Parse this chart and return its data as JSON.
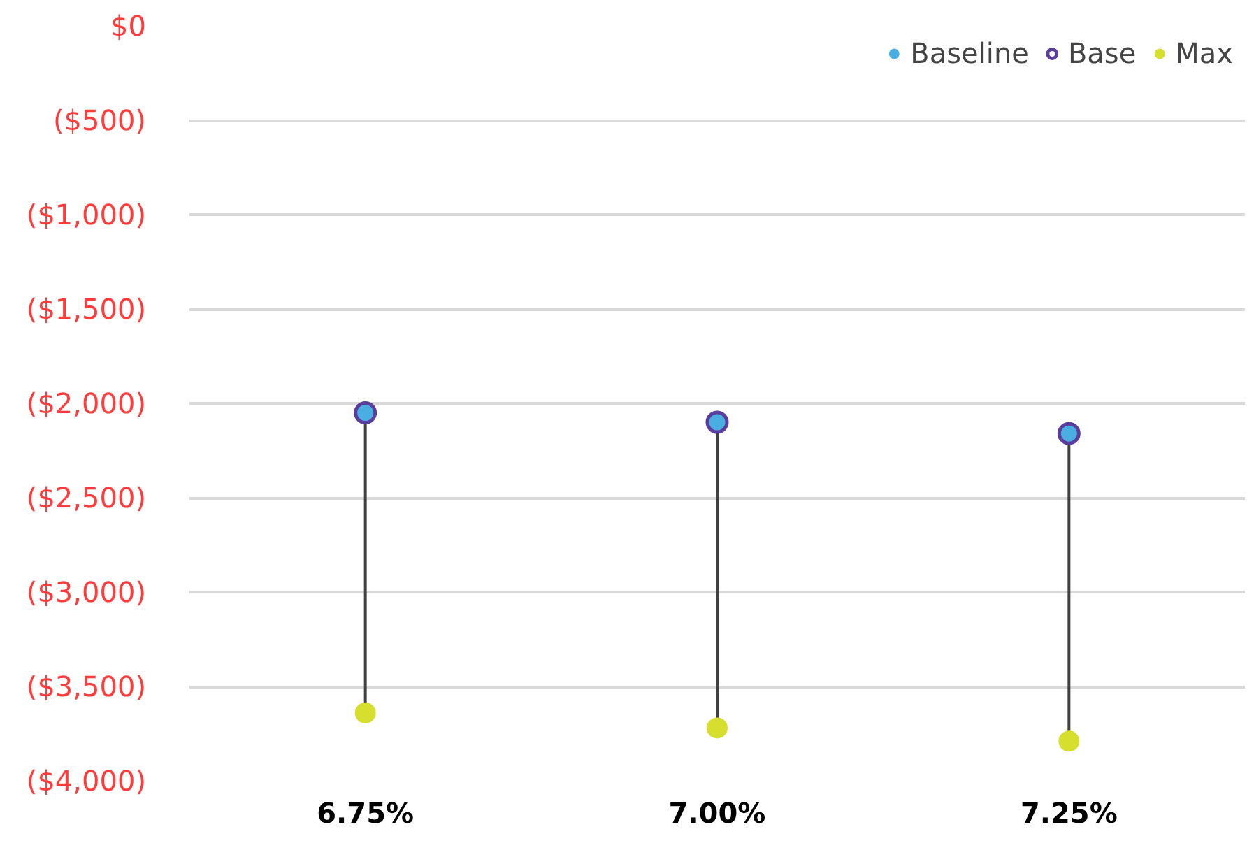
{
  "chart_data": {
    "type": "scatter",
    "categories": [
      "6.75%",
      "7.00%",
      "7.25%"
    ],
    "series": [
      {
        "name": "Baseline",
        "color": "#4aaee3",
        "values": [
          -2050,
          -2100,
          -2160
        ]
      },
      {
        "name": "Base",
        "color": "#5b3d9c",
        "values": [
          -2050,
          -2100,
          -2160
        ]
      },
      {
        "name": "Max",
        "color": "#d6df2e",
        "values": [
          -3640,
          -3720,
          -3790
        ]
      }
    ],
    "ylim": [
      -4000,
      0
    ],
    "yticks": [
      {
        "value": 0,
        "label": "$0"
      },
      {
        "value": -500,
        "label": "($500)"
      },
      {
        "value": -1000,
        "label": "($1,000)"
      },
      {
        "value": -1500,
        "label": "($1,500)"
      },
      {
        "value": -2000,
        "label": "($2,000)"
      },
      {
        "value": -2500,
        "label": "($2,500)"
      },
      {
        "value": -3000,
        "label": "($3,000)"
      },
      {
        "value": -3500,
        "label": "($3,500)"
      },
      {
        "value": -4000,
        "label": "($4,000)"
      }
    ],
    "grid": "y",
    "legend": "top right",
    "marker": "circle"
  }
}
